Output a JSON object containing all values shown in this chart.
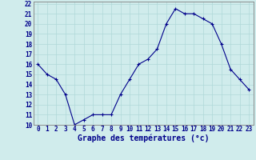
{
  "x": [
    0,
    1,
    2,
    3,
    4,
    5,
    6,
    7,
    8,
    9,
    10,
    11,
    12,
    13,
    14,
    15,
    16,
    17,
    18,
    19,
    20,
    21,
    22,
    23
  ],
  "y": [
    16,
    15,
    14.5,
    13,
    10,
    10.5,
    11,
    11,
    11,
    13,
    14.5,
    16,
    16.5,
    17.5,
    20,
    21.5,
    21,
    21,
    20.5,
    20,
    18,
    15.5,
    14.5,
    13.5
  ],
  "line_color": "#00008B",
  "marker": "+",
  "marker_color": "#00008B",
  "bg_color": "#d0ecec",
  "grid_color": "#b0d8d8",
  "xlabel": "Graphe des températures (°c)",
  "xlabel_color": "#00008B",
  "tick_color": "#00008B",
  "ylim": [
    10,
    22
  ],
  "xlim": [
    -0.5,
    23.5
  ],
  "yticks": [
    10,
    11,
    12,
    13,
    14,
    15,
    16,
    17,
    18,
    19,
    20,
    21,
    22
  ],
  "xticks": [
    0,
    1,
    2,
    3,
    4,
    5,
    6,
    7,
    8,
    9,
    10,
    11,
    12,
    13,
    14,
    15,
    16,
    17,
    18,
    19,
    20,
    21,
    22,
    23
  ],
  "tick_fontsize": 5.5,
  "xlabel_fontsize": 7.0
}
